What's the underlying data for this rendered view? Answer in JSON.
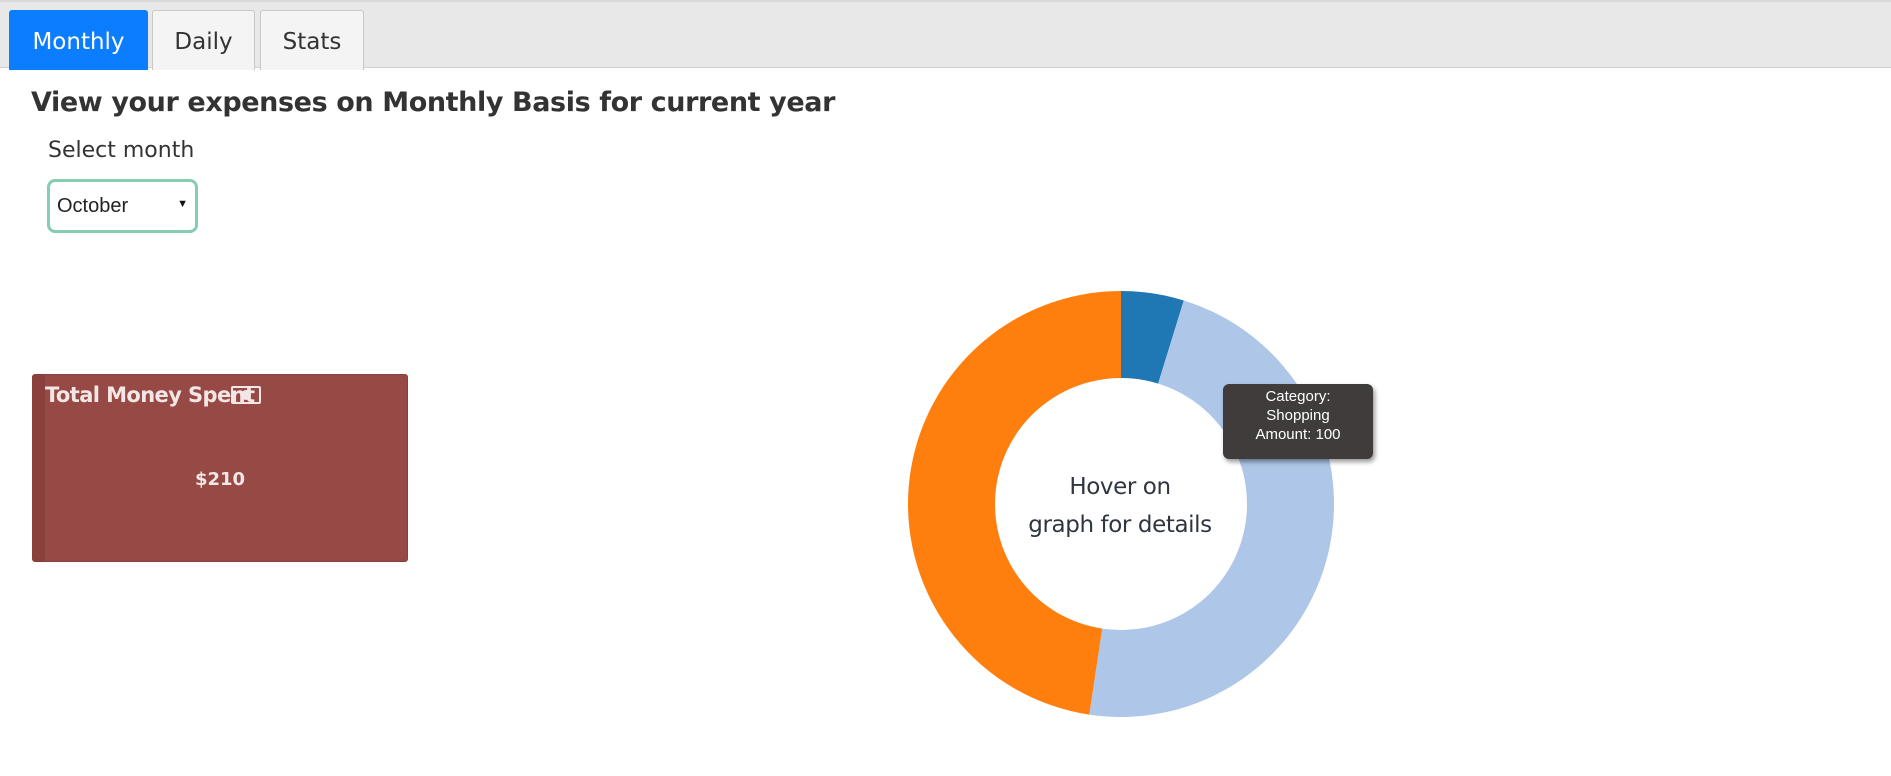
{
  "tabs": [
    {
      "label": "Monthly",
      "active": true
    },
    {
      "label": "Daily",
      "active": false
    },
    {
      "label": "Stats",
      "active": false
    }
  ],
  "page_title": "View your expenses on Monthly Basis for current year",
  "month_selector": {
    "label": "Select month",
    "selected": "October"
  },
  "money_card": {
    "title": "Total Money Spent",
    "icon": "money-bill-icon",
    "amount": "$210"
  },
  "chart_data": {
    "type": "pie",
    "donut": true,
    "center_text": [
      "Hover on",
      "graph for details"
    ],
    "slices": [
      {
        "value": 10,
        "color": "#1f77b4"
      },
      {
        "category": "Shopping",
        "value": 100,
        "color": "#aec7e8"
      },
      {
        "value": 100,
        "color": "#ff7f0e"
      }
    ],
    "tooltip": {
      "lines": [
        "Category:",
        "Shopping",
        "Amount: 100"
      ]
    }
  },
  "colors": {
    "tab_active": "#0b7dff",
    "select_border": "#86cdb2",
    "card_background": "#974945",
    "tooltip_background": "#403c3c"
  }
}
